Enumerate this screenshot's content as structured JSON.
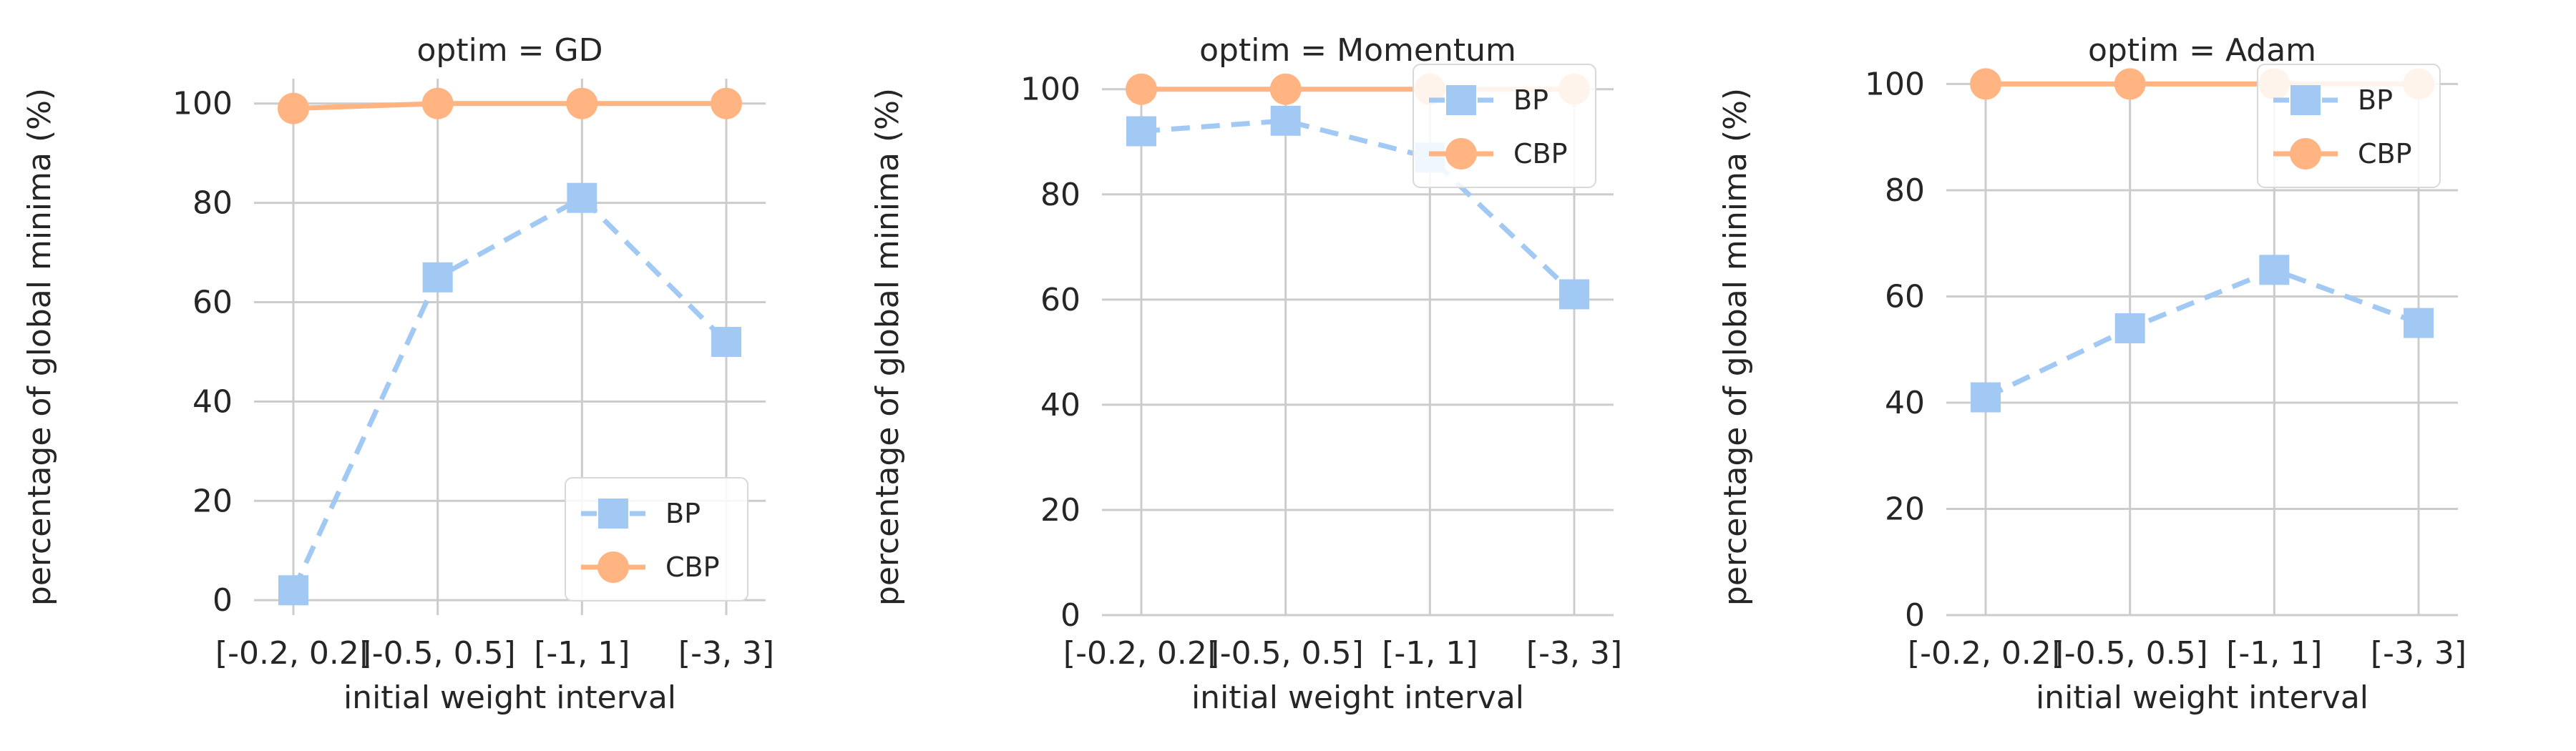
{
  "chart_data": [
    {
      "type": "line",
      "title": "optim = GD",
      "xlabel": "initial weight interval",
      "ylabel": "percentage of global minima (%)",
      "categories": [
        "[-0.2, 0.2]",
        "[-0.5, 0.5]",
        "[-1, 1]",
        "[-3, 3]"
      ],
      "ylim": [
        -3,
        105
      ],
      "yticks": [
        0,
        20,
        40,
        60,
        80,
        100
      ],
      "grid": true,
      "legend_position": "lower-right",
      "series": [
        {
          "name": "BP",
          "values": [
            2,
            65,
            81,
            52
          ],
          "color": "#a1c9f4",
          "marker": "square",
          "linestyle": "dashed"
        },
        {
          "name": "CBP",
          "values": [
            99,
            100,
            100,
            100
          ],
          "color": "#ffb482",
          "marker": "circle",
          "linestyle": "solid"
        }
      ]
    },
    {
      "type": "line",
      "title": "optim = Momentum",
      "xlabel": "initial weight interval",
      "ylabel": "percentage of global minima (%)",
      "categories": [
        "[-0.2, 0.2]",
        "[-0.5, 0.5]",
        "[-1, 1]",
        "[-3, 3]"
      ],
      "ylim": [
        0,
        102
      ],
      "yticks": [
        0,
        20,
        40,
        60,
        80,
        100
      ],
      "grid": true,
      "legend_position": "upper-right",
      "series": [
        {
          "name": "BP",
          "values": [
            92,
            94,
            87,
            61
          ],
          "color": "#a1c9f4",
          "marker": "square",
          "linestyle": "dashed"
        },
        {
          "name": "CBP",
          "values": [
            100,
            100,
            100,
            100
          ],
          "color": "#ffb482",
          "marker": "circle",
          "linestyle": "solid"
        }
      ]
    },
    {
      "type": "line",
      "title": "optim = Adam",
      "xlabel": "initial weight interval",
      "ylabel": "percentage of global minima (%)",
      "categories": [
        "[-0.2, 0.2]",
        "[-0.5, 0.5]",
        "[-1, 1]",
        "[-3, 3]"
      ],
      "ylim": [
        0,
        101
      ],
      "yticks": [
        0,
        20,
        40,
        60,
        80,
        100
      ],
      "grid": true,
      "legend_position": "upper-right",
      "series": [
        {
          "name": "BP",
          "values": [
            41,
            54,
            65,
            55
          ],
          "color": "#a1c9f4",
          "marker": "square",
          "linestyle": "dashed"
        },
        {
          "name": "CBP",
          "values": [
            100,
            100,
            100,
            100
          ],
          "color": "#ffb482",
          "marker": "circle",
          "linestyle": "solid"
        }
      ]
    }
  ]
}
